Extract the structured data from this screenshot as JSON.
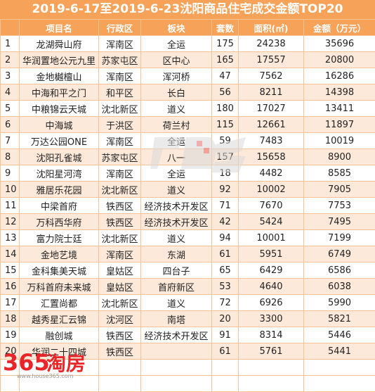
{
  "title": "2019-6-17至2019-6-23沈阳商品住宅成交金额TOP20",
  "headers": [
    "",
    "项目名",
    "行政区",
    "板块",
    "套数",
    "面积(㎡)",
    "金额（万元）"
  ],
  "rows": [
    {
      "rank": "1",
      "name": "龙湖舜山府",
      "district": "浑南区",
      "block": "全运",
      "units": "175",
      "area": "24238",
      "amount": "35696"
    },
    {
      "rank": "2",
      "name": "华润置地公元九里",
      "district": "苏家屯区",
      "block": "区中心",
      "units": "165",
      "area": "17557",
      "amount": "20800"
    },
    {
      "rank": "3",
      "name": "金地樾檀山",
      "district": "浑南区",
      "block": "浑河桥",
      "units": "47",
      "area": "7562",
      "amount": "16286"
    },
    {
      "rank": "4",
      "name": "中海和平之门",
      "district": "和平区",
      "block": "长白",
      "units": "56",
      "area": "8211",
      "amount": "14398"
    },
    {
      "rank": "5",
      "name": "中粮锦云天城",
      "district": "沈北新区",
      "block": "道义",
      "units": "180",
      "area": "17027",
      "amount": "13411"
    },
    {
      "rank": "6",
      "name": "中海城",
      "district": "于洪区",
      "block": "荷兰村",
      "units": "115",
      "area": "12661",
      "amount": "11897"
    },
    {
      "rank": "7",
      "name": "万达公园ONE",
      "district": "浑南区",
      "block": "全运",
      "units": "59",
      "area": "7483",
      "amount": "10019"
    },
    {
      "rank": "8",
      "name": "沈阳孔雀城",
      "district": "苏家屯区",
      "block": "八一",
      "units": "157",
      "area": "15658",
      "amount": "8900"
    },
    {
      "rank": "9",
      "name": "沈阳星河湾",
      "district": "浑南区",
      "block": "全运",
      "units": "18",
      "area": "4482",
      "amount": "8585"
    },
    {
      "rank": "10",
      "name": "雅居乐花园",
      "district": "沈北新区",
      "block": "道义",
      "units": "92",
      "area": "10002",
      "amount": "7905"
    },
    {
      "rank": "11",
      "name": "中梁首府",
      "district": "铁西区",
      "block": "经济技术开发区",
      "units": "71",
      "area": "7670",
      "amount": "7753"
    },
    {
      "rank": "12",
      "name": "万科西华府",
      "district": "铁西区",
      "block": "经济技术开发区",
      "units": "42",
      "area": "5424",
      "amount": "7495"
    },
    {
      "rank": "13",
      "name": "富力院士廷",
      "district": "沈北新区",
      "block": "道义",
      "units": "94",
      "area": "10001",
      "amount": "7199"
    },
    {
      "rank": "14",
      "name": "金地艺境",
      "district": "浑南区",
      "block": "东湖",
      "units": "61",
      "area": "5951",
      "amount": "6749"
    },
    {
      "rank": "15",
      "name": "金科集美天城",
      "district": "皇姑区",
      "block": "四台子",
      "units": "65",
      "area": "6429",
      "amount": "6586"
    },
    {
      "rank": "16",
      "name": "万科首府未来城",
      "district": "皇姑区",
      "block": "首府新区",
      "units": "53",
      "area": "4640",
      "amount": "6038"
    },
    {
      "rank": "17",
      "name": "汇置尚都",
      "district": "沈北新区",
      "block": "道义",
      "units": "72",
      "area": "6926",
      "amount": "5990"
    },
    {
      "rank": "18",
      "name": "越秀星汇云锦",
      "district": "沈河区",
      "block": "南塔",
      "units": "20",
      "area": "3300",
      "amount": "5821"
    },
    {
      "rank": "19",
      "name": "融创城",
      "district": "铁西区",
      "block": "经济技术开发区",
      "units": "91",
      "area": "8314",
      "amount": "5446"
    },
    {
      "rank": "20",
      "name": "华润二十四城",
      "district": "铁西区",
      "block": "",
      "units": "61",
      "area": "5761",
      "amount": "5441"
    }
  ],
  "watermark": {
    "text": "365淘房",
    "url": "www.house365.com",
    "brand_color": "#e8262a"
  },
  "colors": {
    "header_bg": "#f7a259",
    "stripe": "#fde9d9",
    "border": "#f3c397"
  }
}
